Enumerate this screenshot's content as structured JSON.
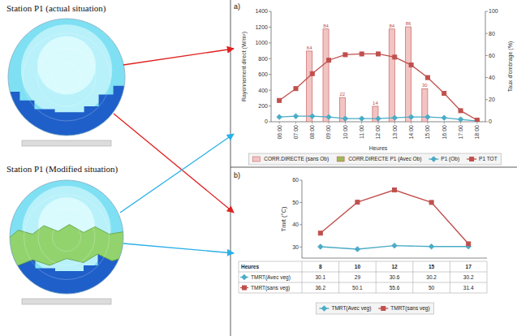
{
  "diagram": {
    "stations": [
      "Station P1  (actual situation)",
      "Station P1  (Modified situation)"
    ],
    "panel_letters": [
      "a)",
      "b)"
    ]
  },
  "chart_data": [
    {
      "type": "bar",
      "categories": [
        "06:00",
        "07:00",
        "08:00",
        "09:00",
        "10:00",
        "11:00",
        "12:00",
        "13:00",
        "14:00",
        "15:00",
        "16:00",
        "17:00",
        "18:00"
      ],
      "x_label": "Heures",
      "y_label": "Rayonnement direct (W/m²)",
      "y2_label": "Taux d'ombrage (%)",
      "ylim": [
        0,
        1400
      ],
      "yticks": [
        0,
        200,
        400,
        600,
        800,
        1000,
        1200,
        1400
      ],
      "y2lim": [
        0,
        100
      ],
      "y2ticks": [
        0,
        20,
        40,
        60,
        80,
        100
      ],
      "grid": false,
      "legend": "bottom",
      "series": [
        {
          "name": "CORR.DIRECTE (sans Ob)",
          "type": "bar",
          "axis": "y2",
          "color": "#f2c4c4",
          "data_labels": true,
          "values": [
            null,
            null,
            64,
            84,
            22,
            null,
            14,
            84,
            86,
            30,
            null,
            null,
            null
          ]
        },
        {
          "name": "CORR.DIRECTE P1 (Avec Ob)",
          "type": "bar",
          "axis": "y2",
          "color": "#9bbb59",
          "data_labels": true,
          "values": [
            null,
            null,
            null,
            null,
            null,
            null,
            null,
            null,
            null,
            null,
            null,
            null,
            null
          ]
        },
        {
          "name": "P1 (Ob)",
          "type": "line",
          "color": "#4bacc6",
          "marker": "diamond",
          "values": [
            60,
            70,
            70,
            60,
            40,
            40,
            40,
            50,
            60,
            60,
            50,
            30,
            10
          ]
        },
        {
          "name": "P1 TOT",
          "type": "line",
          "color": "#c0504d",
          "marker": "square",
          "values": [
            270,
            420,
            610,
            780,
            850,
            860,
            860,
            820,
            720,
            560,
            360,
            140,
            20
          ]
        }
      ]
    },
    {
      "type": "line",
      "categories": [
        "8",
        "10",
        "12",
        "15",
        "17"
      ],
      "x_label": "Heures",
      "y_label": "Tmrt (°C)",
      "ylim": [
        25,
        60
      ],
      "yticks": [
        30,
        40,
        50,
        60
      ],
      "grid": false,
      "legend": "bottom",
      "series": [
        {
          "name": "TMRT(Avec veg)",
          "color": "#4bacc6",
          "marker": "diamond",
          "values": [
            30.1,
            29,
            30.6,
            30.2,
            30.2
          ]
        },
        {
          "name": "TMRT(sans veg)",
          "color": "#c0504d",
          "marker": "square",
          "values": [
            36.2,
            50.1,
            55.6,
            50,
            31.4
          ]
        }
      ]
    }
  ]
}
